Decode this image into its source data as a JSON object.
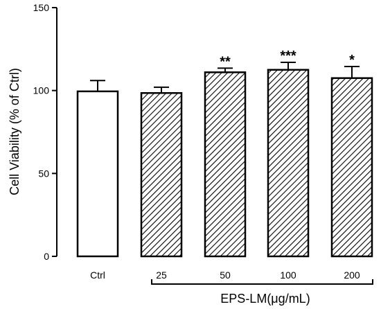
{
  "chart_data": {
    "type": "bar",
    "ylabel": "Cell Viability (% of Ctrl)",
    "ylim": [
      0,
      150
    ],
    "yticks": [
      0,
      50,
      100,
      150
    ],
    "categories": [
      "Ctrl",
      "25",
      "50",
      "100",
      "200"
    ],
    "values": [
      99.5,
      98.5,
      111,
      112.5,
      107.5
    ],
    "errors": [
      6.5,
      3.5,
      2.5,
      4.5,
      7
    ],
    "significance": [
      "",
      "",
      "**",
      "***",
      "*"
    ],
    "fills": [
      "solid-white",
      "hatched",
      "hatched",
      "hatched",
      "hatched"
    ],
    "group_label": "EPS-LM(μg/mL)",
    "grid": false
  }
}
